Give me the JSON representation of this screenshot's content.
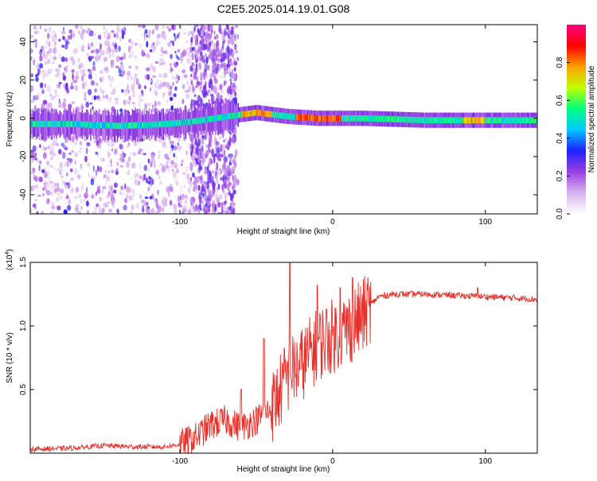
{
  "title": "C2E5.2025.014.19.01.G08",
  "chart_data": [
    {
      "type": "heatmap",
      "xlabel": "Height of straight line (km)",
      "ylabel": "Frequency (Hz)",
      "xlim": [
        -198,
        134
      ],
      "ylim": [
        -50,
        49
      ],
      "x_ticks": [
        -100,
        0,
        100
      ],
      "y_ticks": [
        -40,
        -20,
        0,
        20,
        40
      ],
      "colorbar": {
        "label": "Normalized spectral amplitude",
        "range": [
          0.0,
          1.0
        ],
        "ticks": [
          "0.0",
          "0.2",
          "0.4",
          "0.6",
          "0.8"
        ],
        "colors": [
          "#ffffff",
          "#d9b3f0",
          "#9b40e0",
          "#2020ff",
          "#00c8ff",
          "#00ff80",
          "#c0ff00",
          "#ffa000",
          "#ff0000",
          "#ff0080"
        ]
      },
      "ridge": {
        "description_points": [
          {
            "x": -198,
            "y": -3
          },
          {
            "x": -170,
            "y": -3
          },
          {
            "x": -140,
            "y": -4
          },
          {
            "x": -110,
            "y": -3
          },
          {
            "x": -95,
            "y": -2
          },
          {
            "x": -60,
            "y": 2
          },
          {
            "x": -50,
            "y": 3
          },
          {
            "x": -40,
            "y": 2
          },
          {
            "x": -30,
            "y": 1
          },
          {
            "x": -10,
            "y": 0
          },
          {
            "x": 20,
            "y": 0
          },
          {
            "x": 60,
            "y": -1
          },
          {
            "x": 100,
            "y": -1
          },
          {
            "x": 134,
            "y": -1
          }
        ],
        "peak_segments": [
          {
            "x0": -60,
            "x1": -40,
            "amplitude": 0.85
          },
          {
            "x0": -25,
            "x1": 5,
            "amplitude": 0.9
          },
          {
            "x0": 85,
            "x1": 100,
            "amplitude": 0.8
          }
        ]
      },
      "noisy_region": {
        "x0": -198,
        "x1": -62
      }
    },
    {
      "type": "line",
      "xlabel": "Height of straight line (km)",
      "ylabel": "SNR (10 * v/v)",
      "scale_label": "(x10",
      "scale_exponent": "4",
      "scale_close": ")",
      "xlim": [
        -198,
        134
      ],
      "ylim": [
        0.0,
        1.5
      ],
      "x_ticks": [
        -100,
        0,
        100
      ],
      "y_ticks": [
        "0.5",
        "1.0",
        "1.5"
      ],
      "series": [
        {
          "color": "#e8302a",
          "points": [
            [
              -198,
              0.03
            ],
            [
              -170,
              0.04
            ],
            [
              -150,
              0.06
            ],
            [
              -130,
              0.05
            ],
            [
              -110,
              0.05
            ],
            [
              -100,
              0.07
            ],
            [
              -90,
              0.12
            ],
            [
              -80,
              0.22
            ],
            [
              -70,
              0.26
            ],
            [
              -60,
              0.2
            ],
            [
              -50,
              0.26
            ],
            [
              -40,
              0.35
            ],
            [
              -30,
              0.6
            ],
            [
              -25,
              0.65
            ],
            [
              -20,
              0.7
            ],
            [
              -15,
              0.78
            ],
            [
              -10,
              0.85
            ],
            [
              -5,
              0.9
            ],
            [
              0,
              0.92
            ],
            [
              10,
              0.98
            ],
            [
              20,
              1.08
            ],
            [
              25,
              1.17
            ],
            [
              30,
              1.23
            ],
            [
              40,
              1.25
            ],
            [
              60,
              1.25
            ],
            [
              80,
              1.24
            ],
            [
              100,
              1.23
            ],
            [
              120,
              1.22
            ],
            [
              134,
              1.21
            ]
          ],
          "spikes": [
            [
              -28,
              1.5
            ],
            [
              -45,
              0.9
            ],
            [
              -60,
              0.5
            ],
            [
              -10,
              1.32
            ],
            [
              5,
              1.3
            ],
            [
              13,
              1.38
            ],
            [
              95,
              1.3
            ]
          ]
        }
      ]
    }
  ]
}
